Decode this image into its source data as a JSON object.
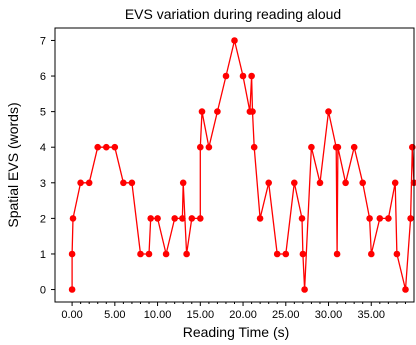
{
  "chart_data": {
    "type": "line",
    "title": "EVS  variation during reading aloud",
    "xlabel": "Reading Time (s)",
    "ylabel": "Spatial EVS (words)",
    "xlim": [
      -2.0,
      40.0
    ],
    "ylim": [
      -0.35,
      7.35
    ],
    "x_ticks": [
      0,
      5,
      10,
      15,
      20,
      25,
      30,
      35
    ],
    "x_tick_labels": [
      "0.00",
      "5.00",
      "10.00",
      "15.00",
      "20.00",
      "25.00",
      "30.00",
      "35.00"
    ],
    "x_minor_ticks": [
      1,
      2,
      3,
      4,
      6,
      7,
      8,
      9,
      11,
      12,
      13,
      14,
      16,
      17,
      18,
      19,
      21,
      22,
      23,
      24,
      26,
      27,
      28,
      29,
      31,
      32,
      33,
      34,
      36,
      37,
      38,
      39
    ],
    "y_ticks": [
      0,
      1,
      2,
      3,
      4,
      5,
      6,
      7
    ],
    "y_tick_labels": [
      "0",
      "1",
      "2",
      "3",
      "4",
      "5",
      "6",
      "7"
    ],
    "grid": false,
    "color": "#ff0000",
    "marker": "circle",
    "x": [
      0.0,
      0.0,
      0.1,
      1.0,
      2.0,
      3.0,
      4.0,
      5.0,
      6.0,
      7.0,
      8.0,
      9.0,
      9.2,
      10.0,
      11.0,
      12.0,
      12.9,
      13.0,
      13.4,
      14.0,
      15.0,
      15.0,
      15.2,
      16.0,
      17.0,
      18.0,
      19.0,
      20.0,
      20.8,
      21.0,
      21.1,
      21.3,
      22.0,
      23.0,
      24.0,
      25.0,
      26.0,
      26.9,
      27.0,
      27.2,
      28.0,
      29.0,
      30.0,
      30.9,
      31.0,
      31.1,
      32.0,
      33.0,
      34.0,
      34.8,
      35.0,
      36.0,
      37.0,
      37.8,
      38.0,
      39.0,
      39.6,
      39.8,
      40.0
    ],
    "y": [
      0,
      1,
      2,
      3,
      3,
      4,
      4,
      4,
      3,
      3,
      1,
      1,
      2,
      2,
      1,
      2,
      2,
      3,
      1,
      2,
      2,
      4,
      5,
      4,
      5,
      6,
      7,
      6,
      5,
      6,
      5,
      4,
      2,
      3,
      1,
      1,
      3,
      2,
      1,
      0,
      4,
      3,
      5,
      4,
      1,
      4,
      3,
      4,
      3,
      2,
      1,
      2,
      2,
      3,
      1,
      0,
      2,
      4,
      3
    ]
  }
}
